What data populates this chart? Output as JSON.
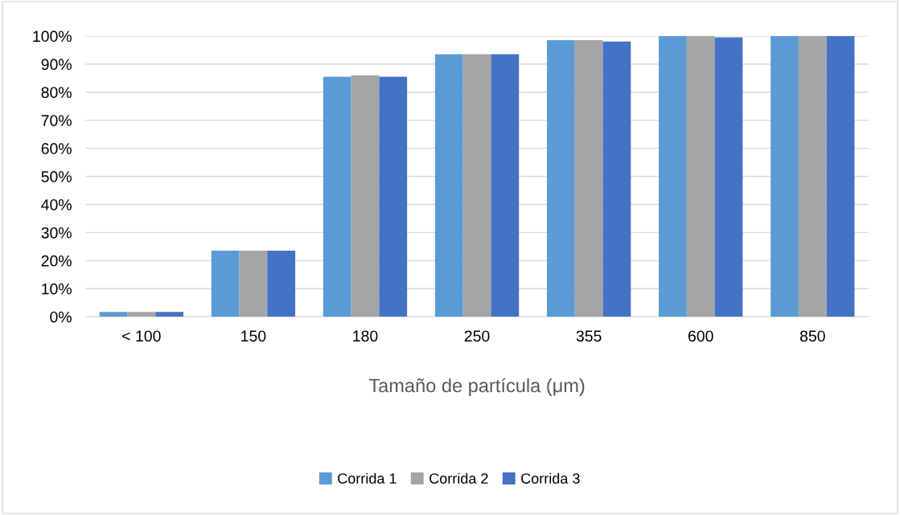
{
  "chart_data": {
    "type": "bar",
    "xlabel": "Tamaño de partícula (μm)",
    "categories": [
      "< 100",
      "150",
      "180",
      "250",
      "355",
      "600",
      "850"
    ],
    "series": [
      {
        "name": "Corrida 1",
        "color": "#5b9bd5",
        "values": [
          1.7,
          23.5,
          85.5,
          93.5,
          98.5,
          100,
          100
        ]
      },
      {
        "name": "Corrida 2",
        "color": "#a5a5a5",
        "values": [
          1.7,
          23.5,
          86,
          93.5,
          98.5,
          100,
          100
        ]
      },
      {
        "name": "Corrida 3",
        "color": "#4472c4",
        "values": [
          1.7,
          23.5,
          85.5,
          93.5,
          98,
          99.5,
          100
        ]
      }
    ],
    "ylim": [
      0,
      100
    ],
    "yticks": [
      {
        "value": 0,
        "label": "0%"
      },
      {
        "value": 10,
        "label": "10%"
      },
      {
        "value": 20,
        "label": "20%"
      },
      {
        "value": 30,
        "label": "30%"
      },
      {
        "value": 40,
        "label": "40%"
      },
      {
        "value": 50,
        "label": "50%"
      },
      {
        "value": 60,
        "label": "60%"
      },
      {
        "value": 70,
        "label": "70%"
      },
      {
        "value": 80,
        "label": "80%"
      },
      {
        "value": 90,
        "label": "90%"
      },
      {
        "value": 100,
        "label": "100%"
      }
    ],
    "grid": "y",
    "legend": "bottom"
  }
}
